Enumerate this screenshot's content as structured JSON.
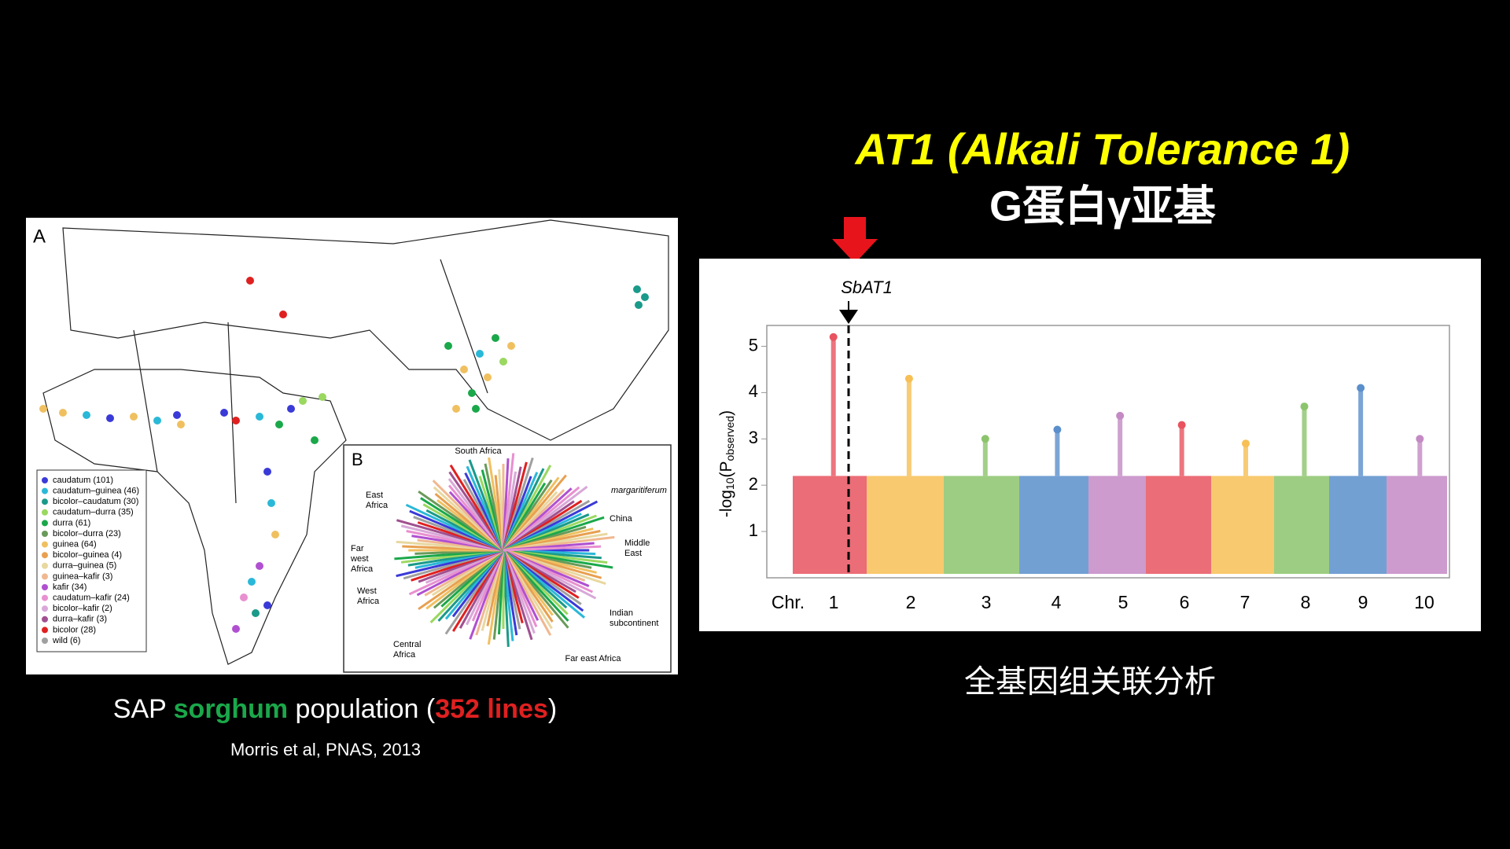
{
  "left_figure": {
    "panel_a_label": "A",
    "legend": [
      {
        "label": "caudatum (101)",
        "color": "#3a3ad8"
      },
      {
        "label": "caudatum–guinea (46)",
        "color": "#2ab8d8"
      },
      {
        "label": "bicolor–caudatum (30)",
        "color": "#1a9a8a"
      },
      {
        "label": "caudatum–durra (35)",
        "color": "#9ad860"
      },
      {
        "label": "durra (61)",
        "color": "#1aa84a"
      },
      {
        "label": "bicolor–durra (23)",
        "color": "#6a9a5a"
      },
      {
        "label": "guinea (64)",
        "color": "#f0c060"
      },
      {
        "label": "bicolor–guinea (4)",
        "color": "#e8a050"
      },
      {
        "label": "durra–guinea (5)",
        "color": "#e8d8a0"
      },
      {
        "label": "guinea–kafir (3)",
        "color": "#f0b890"
      },
      {
        "label": "kafir (34)",
        "color": "#b050d0"
      },
      {
        "label": "caudatum–kafir (24)",
        "color": "#e890d0"
      },
      {
        "label": "bicolor–kafir (2)",
        "color": "#d8a8d8"
      },
      {
        "label": "durra–kafir (3)",
        "color": "#a05090"
      },
      {
        "label": "bicolor (28)",
        "color": "#e02020"
      },
      {
        "label": "wild (6)",
        "color": "#a0a0a0"
      }
    ],
    "panel_b_label": "B",
    "regions": [
      [
        "South Africa"
      ],
      [
        "East",
        "Africa"
      ],
      [
        "Far",
        "west",
        "Africa"
      ],
      [
        "West",
        "Africa"
      ],
      [
        "Central",
        "Africa"
      ],
      [
        "Far east Africa"
      ],
      [
        "Indian",
        "subcontinent"
      ],
      [
        "Middle",
        "East"
      ],
      [
        "China"
      ],
      [
        "margaritiferum"
      ]
    ]
  },
  "left_caption": {
    "segments": [
      {
        "text": "SAP ",
        "color": "#ffffff"
      },
      {
        "text": "sorghum",
        "color": "#1aa84a"
      },
      {
        "text": " population (",
        "color": "#ffffff"
      },
      {
        "text": "352 lines",
        "color": "#e02020"
      },
      {
        "text": ")",
        "color": "#ffffff"
      }
    ],
    "citation": "Morris et al, PNAS, 2013"
  },
  "title": {
    "line1": "AT1 (Alkali Tolerance 1)",
    "line2": "G蛋白γ亚基"
  },
  "manhattan": {
    "gene_label": "SbAT1",
    "y_label_main": "-log",
    "y_label_sub": "10",
    "y_label_paren": "(P",
    "y_label_sub2": "observed",
    "y_label_end": ")",
    "x_label": "Chr.",
    "ylim": [
      0,
      5.45
    ],
    "yticks": [
      1,
      2,
      3,
      4,
      5
    ],
    "chromosomes": [
      {
        "label": "1",
        "color": "#e8535f",
        "peak": 5.2
      },
      {
        "label": "2",
        "color": "#f7bf55",
        "peak": 4.3
      },
      {
        "label": "3",
        "color": "#8cc46c",
        "peak": 3.0
      },
      {
        "label": "4",
        "color": "#5b8fcb",
        "peak": 3.2
      },
      {
        "label": "5",
        "color": "#c48ac4",
        "peak": 3.5
      },
      {
        "label": "6",
        "color": "#e8535f",
        "peak": 3.3
      },
      {
        "label": "7",
        "color": "#f7bf55",
        "peak": 2.9
      },
      {
        "label": "8",
        "color": "#8cc46c",
        "peak": 3.7
      },
      {
        "label": "9",
        "color": "#5b8fcb",
        "peak": 4.1
      },
      {
        "label": "10",
        "color": "#c48ac4",
        "peak": 3.0
      }
    ]
  },
  "right_caption": "全基因组关联分析"
}
